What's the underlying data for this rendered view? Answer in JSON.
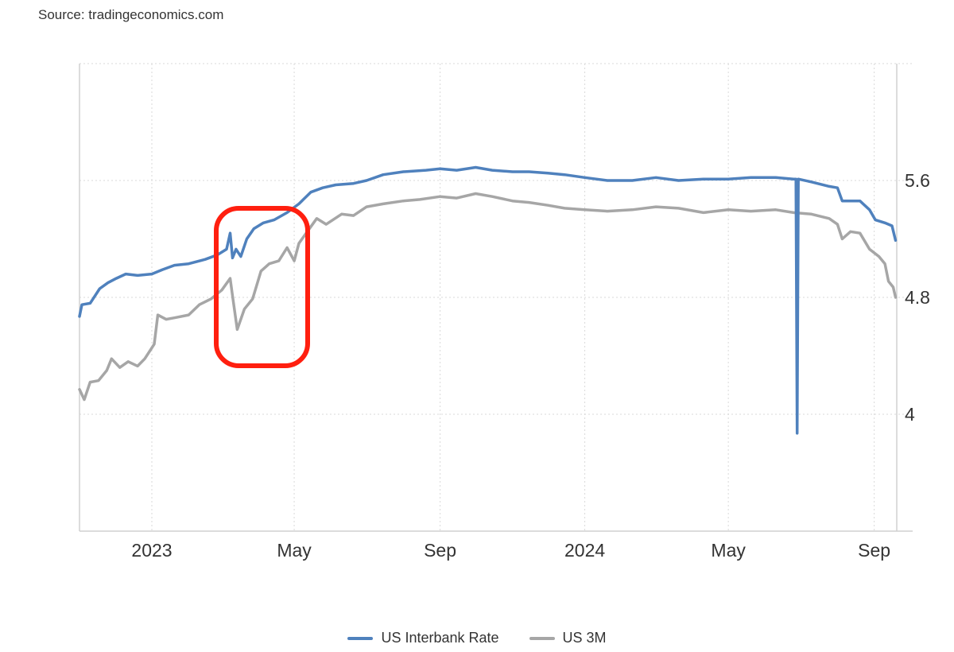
{
  "source_text": "Source: tradingeconomics.com",
  "chart_data": {
    "type": "line",
    "title": "",
    "xlabel": "",
    "ylabel": "",
    "x_range": [
      "2022-11-01",
      "2024-09-20"
    ],
    "ylim": [
      3.2,
      6.4
    ],
    "y_ticks": [
      4,
      4.8,
      5.6
    ],
    "y_tick_labels": [
      "4",
      "4.8",
      "5.6"
    ],
    "x_ticks": [
      {
        "date": "2023-01-01",
        "label": "2023"
      },
      {
        "date": "2023-05-01",
        "label": "May"
      },
      {
        "date": "2023-09-01",
        "label": "Sep"
      },
      {
        "date": "2024-01-01",
        "label": "2024"
      },
      {
        "date": "2024-05-01",
        "label": "May"
      },
      {
        "date": "2024-09-01",
        "label": "Sep"
      }
    ],
    "grid": true,
    "legend_position": "bottom",
    "series": [
      {
        "name": "US Interbank Rate",
        "color": "#4f81bd",
        "points": [
          [
            "2022-11-01",
            4.67
          ],
          [
            "2022-11-03",
            4.75
          ],
          [
            "2022-11-10",
            4.76
          ],
          [
            "2022-11-18",
            4.86
          ],
          [
            "2022-11-25",
            4.9
          ],
          [
            "2022-12-02",
            4.93
          ],
          [
            "2022-12-10",
            4.96
          ],
          [
            "2022-12-20",
            4.95
          ],
          [
            "2023-01-01",
            4.96
          ],
          [
            "2023-01-10",
            4.99
          ],
          [
            "2023-01-20",
            5.02
          ],
          [
            "2023-02-01",
            5.03
          ],
          [
            "2023-02-15",
            5.06
          ],
          [
            "2023-02-25",
            5.09
          ],
          [
            "2023-03-05",
            5.13
          ],
          [
            "2023-03-08",
            5.24
          ],
          [
            "2023-03-10",
            5.07
          ],
          [
            "2023-03-13",
            5.13
          ],
          [
            "2023-03-17",
            5.08
          ],
          [
            "2023-03-22",
            5.2
          ],
          [
            "2023-03-28",
            5.27
          ],
          [
            "2023-04-05",
            5.31
          ],
          [
            "2023-04-14",
            5.33
          ],
          [
            "2023-04-25",
            5.38
          ],
          [
            "2023-05-05",
            5.44
          ],
          [
            "2023-05-15",
            5.52
          ],
          [
            "2023-05-25",
            5.55
          ],
          [
            "2023-06-05",
            5.57
          ],
          [
            "2023-06-20",
            5.58
          ],
          [
            "2023-07-01",
            5.6
          ],
          [
            "2023-07-15",
            5.64
          ],
          [
            "2023-08-01",
            5.66
          ],
          [
            "2023-08-20",
            5.67
          ],
          [
            "2023-09-01",
            5.68
          ],
          [
            "2023-09-15",
            5.67
          ],
          [
            "2023-10-01",
            5.69
          ],
          [
            "2023-10-15",
            5.67
          ],
          [
            "2023-11-01",
            5.66
          ],
          [
            "2023-11-15",
            5.66
          ],
          [
            "2023-12-01",
            5.65
          ],
          [
            "2023-12-15",
            5.64
          ],
          [
            "2024-01-01",
            5.62
          ],
          [
            "2024-01-20",
            5.6
          ],
          [
            "2024-02-10",
            5.6
          ],
          [
            "2024-03-01",
            5.62
          ],
          [
            "2024-03-20",
            5.6
          ],
          [
            "2024-04-10",
            5.61
          ],
          [
            "2024-05-01",
            5.61
          ],
          [
            "2024-05-20",
            5.62
          ],
          [
            "2024-06-10",
            5.62
          ],
          [
            "2024-06-25",
            5.61
          ],
          [
            "2024-06-27",
            5.61
          ],
          [
            "2024-06-28",
            3.87
          ],
          [
            "2024-06-29",
            5.61
          ],
          [
            "2024-07-10",
            5.59
          ],
          [
            "2024-07-25",
            5.56
          ],
          [
            "2024-08-01",
            5.55
          ],
          [
            "2024-08-05",
            5.46
          ],
          [
            "2024-08-20",
            5.46
          ],
          [
            "2024-08-28",
            5.4
          ],
          [
            "2024-09-02",
            5.33
          ],
          [
            "2024-09-10",
            5.31
          ],
          [
            "2024-09-16",
            5.29
          ],
          [
            "2024-09-19",
            5.19
          ]
        ]
      },
      {
        "name": "US 3M",
        "color": "#a6a6a6",
        "points": [
          [
            "2022-11-01",
            4.17
          ],
          [
            "2022-11-05",
            4.1
          ],
          [
            "2022-11-10",
            4.22
          ],
          [
            "2022-11-17",
            4.23
          ],
          [
            "2022-11-24",
            4.3
          ],
          [
            "2022-11-28",
            4.38
          ],
          [
            "2022-12-05",
            4.32
          ],
          [
            "2022-12-12",
            4.36
          ],
          [
            "2022-12-20",
            4.33
          ],
          [
            "2022-12-26",
            4.38
          ],
          [
            "2023-01-03",
            4.48
          ],
          [
            "2023-01-06",
            4.68
          ],
          [
            "2023-01-13",
            4.65
          ],
          [
            "2023-01-20",
            4.66
          ],
          [
            "2023-02-01",
            4.68
          ],
          [
            "2023-02-10",
            4.75
          ],
          [
            "2023-02-20",
            4.79
          ],
          [
            "2023-03-01",
            4.85
          ],
          [
            "2023-03-08",
            4.93
          ],
          [
            "2023-03-10",
            4.81
          ],
          [
            "2023-03-14",
            4.58
          ],
          [
            "2023-03-20",
            4.72
          ],
          [
            "2023-03-27",
            4.79
          ],
          [
            "2023-04-03",
            4.98
          ],
          [
            "2023-04-10",
            5.03
          ],
          [
            "2023-04-18",
            5.05
          ],
          [
            "2023-04-25",
            5.14
          ],
          [
            "2023-05-01",
            5.05
          ],
          [
            "2023-05-05",
            5.17
          ],
          [
            "2023-05-12",
            5.25
          ],
          [
            "2023-05-20",
            5.34
          ],
          [
            "2023-05-28",
            5.3
          ],
          [
            "2023-06-10",
            5.37
          ],
          [
            "2023-06-20",
            5.36
          ],
          [
            "2023-07-01",
            5.42
          ],
          [
            "2023-07-15",
            5.44
          ],
          [
            "2023-08-01",
            5.46
          ],
          [
            "2023-08-15",
            5.47
          ],
          [
            "2023-09-01",
            5.49
          ],
          [
            "2023-09-15",
            5.48
          ],
          [
            "2023-10-01",
            5.51
          ],
          [
            "2023-10-15",
            5.49
          ],
          [
            "2023-11-01",
            5.46
          ],
          [
            "2023-11-15",
            5.45
          ],
          [
            "2023-12-01",
            5.43
          ],
          [
            "2023-12-15",
            5.41
          ],
          [
            "2024-01-01",
            5.4
          ],
          [
            "2024-01-20",
            5.39
          ],
          [
            "2024-02-10",
            5.4
          ],
          [
            "2024-03-01",
            5.42
          ],
          [
            "2024-03-20",
            5.41
          ],
          [
            "2024-04-10",
            5.38
          ],
          [
            "2024-05-01",
            5.4
          ],
          [
            "2024-05-20",
            5.39
          ],
          [
            "2024-06-10",
            5.4
          ],
          [
            "2024-06-25",
            5.38
          ],
          [
            "2024-07-10",
            5.37
          ],
          [
            "2024-07-25",
            5.34
          ],
          [
            "2024-08-01",
            5.3
          ],
          [
            "2024-08-05",
            5.2
          ],
          [
            "2024-08-12",
            5.25
          ],
          [
            "2024-08-20",
            5.24
          ],
          [
            "2024-08-28",
            5.13
          ],
          [
            "2024-09-05",
            5.08
          ],
          [
            "2024-09-10",
            5.03
          ],
          [
            "2024-09-13",
            4.91
          ],
          [
            "2024-09-17",
            4.87
          ],
          [
            "2024-09-19",
            4.8
          ]
        ]
      }
    ]
  }
}
